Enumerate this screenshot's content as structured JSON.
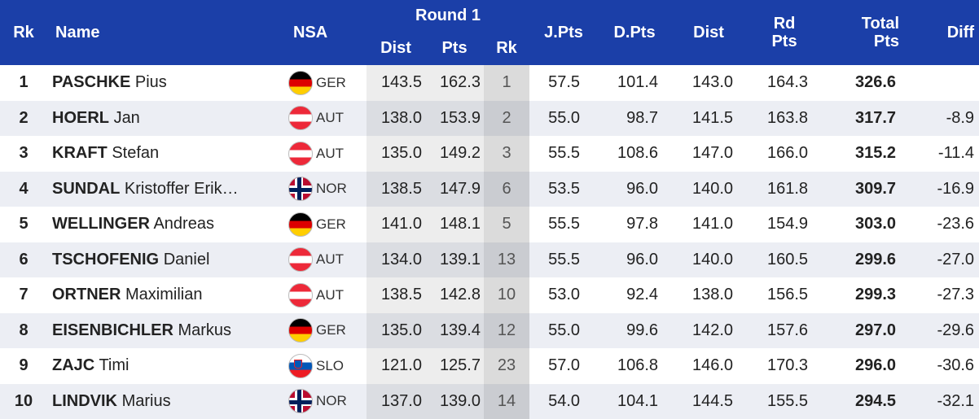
{
  "headers": {
    "rk": "Rk",
    "name": "Name",
    "nsa": "NSA",
    "round": "Round 1",
    "dist": "Dist",
    "pts": "Pts",
    "rrk": "Rk",
    "jpts": "J.Pts",
    "dpts": "D.Pts",
    "dist2": "Dist",
    "rd_top": "Rd",
    "rd_bottom": "Pts",
    "total_top": "Total",
    "total_bottom": "Pts",
    "diff": "Diff"
  },
  "flags": {
    "GER": [
      "#000000",
      "#dd0000",
      "#ffce00"
    ],
    "AUT": [
      "#ed2939",
      "#ffffff",
      "#ed2939"
    ],
    "SLO": [
      "#ffffff",
      "#0057b8",
      "#ed1c24"
    ],
    "NOR": [
      "#ba0c2f",
      "#ffffff",
      "#00205b"
    ]
  },
  "rows": [
    {
      "rk": "1",
      "last": "PASCHKE",
      "first": "Pius",
      "nsa": "GER",
      "dist": "143.5",
      "pts": "162.3",
      "rrk": "1",
      "jpts": "57.5",
      "dpts": "101.4",
      "dist2": "143.0",
      "rdpts": "164.3",
      "total": "326.6",
      "diff": ""
    },
    {
      "rk": "2",
      "last": "HOERL",
      "first": "Jan",
      "nsa": "AUT",
      "dist": "138.0",
      "pts": "153.9",
      "rrk": "2",
      "jpts": "55.0",
      "dpts": "98.7",
      "dist2": "141.5",
      "rdpts": "163.8",
      "total": "317.7",
      "diff": "-8.9"
    },
    {
      "rk": "3",
      "last": "KRAFT",
      "first": "Stefan",
      "nsa": "AUT",
      "dist": "135.0",
      "pts": "149.2",
      "rrk": "3",
      "jpts": "55.5",
      "dpts": "108.6",
      "dist2": "147.0",
      "rdpts": "166.0",
      "total": "315.2",
      "diff": "-11.4"
    },
    {
      "rk": "4",
      "last": "SUNDAL",
      "first": "Kristoffer Erik…",
      "nsa": "NOR",
      "dist": "138.5",
      "pts": "147.9",
      "rrk": "6",
      "jpts": "53.5",
      "dpts": "96.0",
      "dist2": "140.0",
      "rdpts": "161.8",
      "total": "309.7",
      "diff": "-16.9"
    },
    {
      "rk": "5",
      "last": "WELLINGER",
      "first": "Andreas",
      "nsa": "GER",
      "dist": "141.0",
      "pts": "148.1",
      "rrk": "5",
      "jpts": "55.5",
      "dpts": "97.8",
      "dist2": "141.0",
      "rdpts": "154.9",
      "total": "303.0",
      "diff": "-23.6"
    },
    {
      "rk": "6",
      "last": "TSCHOFENIG",
      "first": "Daniel",
      "nsa": "AUT",
      "dist": "134.0",
      "pts": "139.1",
      "rrk": "13",
      "jpts": "55.5",
      "dpts": "96.0",
      "dist2": "140.0",
      "rdpts": "160.5",
      "total": "299.6",
      "diff": "-27.0"
    },
    {
      "rk": "7",
      "last": "ORTNER",
      "first": "Maximilian",
      "nsa": "AUT",
      "dist": "138.5",
      "pts": "142.8",
      "rrk": "10",
      "jpts": "53.0",
      "dpts": "92.4",
      "dist2": "138.0",
      "rdpts": "156.5",
      "total": "299.3",
      "diff": "-27.3"
    },
    {
      "rk": "8",
      "last": "EISENBICHLER",
      "first": "Markus",
      "nsa": "GER",
      "dist": "135.0",
      "pts": "139.4",
      "rrk": "12",
      "jpts": "55.0",
      "dpts": "99.6",
      "dist2": "142.0",
      "rdpts": "157.6",
      "total": "297.0",
      "diff": "-29.6"
    },
    {
      "rk": "9",
      "last": "ZAJC",
      "first": "Timi",
      "nsa": "SLO",
      "dist": "121.0",
      "pts": "125.7",
      "rrk": "23",
      "jpts": "57.0",
      "dpts": "106.8",
      "dist2": "146.0",
      "rdpts": "170.3",
      "total": "296.0",
      "diff": "-30.6"
    },
    {
      "rk": "10",
      "last": "LINDVIK",
      "first": "Marius",
      "nsa": "NOR",
      "dist": "137.0",
      "pts": "139.0",
      "rrk": "14",
      "jpts": "54.0",
      "dpts": "104.1",
      "dist2": "144.5",
      "rdpts": "155.5",
      "total": "294.5",
      "diff": "-32.1"
    }
  ]
}
